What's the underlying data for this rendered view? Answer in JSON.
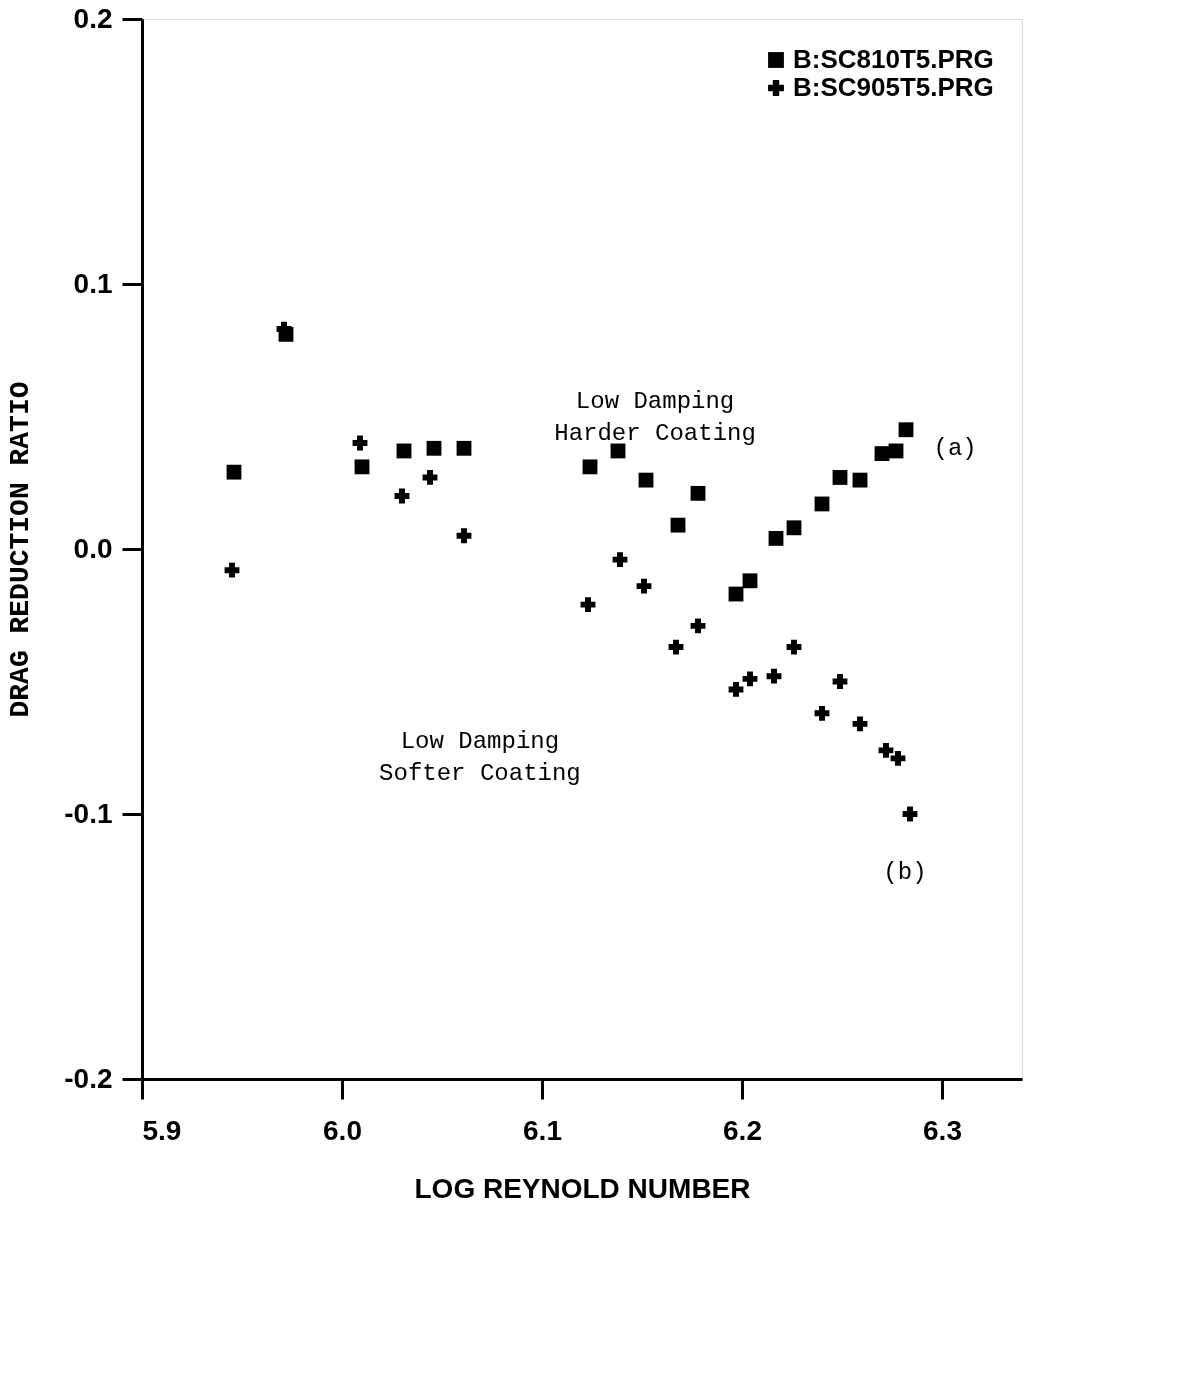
{
  "chart_data": {
    "type": "scatter",
    "xlabel": "LOG REYNOLD NUMBER",
    "ylabel": "DRAG REDUCTION RATIO",
    "xlim": [
      5.9,
      6.34
    ],
    "xticks": [
      {
        "value": 5.9,
        "label": "5.9"
      },
      {
        "value": 6.0,
        "label": "6.0"
      },
      {
        "value": 6.1,
        "label": "6.1"
      },
      {
        "value": 6.2,
        "label": "6.2"
      },
      {
        "value": 6.3,
        "label": "6.3"
      }
    ],
    "ylim": [
      -0.2,
      0.2
    ],
    "yticks": [
      {
        "value": -0.2,
        "label": "-0.2"
      },
      {
        "value": -0.1,
        "label": "-0.1"
      },
      {
        "value": 0,
        "label": "0.0"
      },
      {
        "value": 0.1,
        "label": "0.1"
      },
      {
        "value": 0.2,
        "label": "0.2"
      }
    ],
    "grid": false,
    "legend": "top right",
    "series": [
      {
        "name": "B:SC810T5.PRG",
        "color": "#000000",
        "marker": "square",
        "x": [
          5.946,
          5.972,
          6.01,
          6.031,
          6.046,
          6.061,
          6.124,
          6.138,
          6.152,
          6.168,
          6.178,
          6.197,
          6.204,
          6.217,
          6.226,
          6.24,
          6.249,
          6.259,
          6.27,
          6.277,
          6.282
        ],
        "values": [
          0.029,
          0.081,
          0.031,
          0.037,
          0.038,
          0.038,
          0.031,
          0.037,
          0.026,
          0.009,
          0.021,
          -0.017,
          -0.012,
          0.004,
          0.008,
          0.017,
          0.027,
          0.026,
          0.036,
          0.037,
          0.045
        ]
      },
      {
        "name": "B:SC905T5.PRG",
        "color": "#000000",
        "marker": "cross",
        "x": [
          5.945,
          5.971,
          6.009,
          6.03,
          6.044,
          6.061,
          6.123,
          6.139,
          6.151,
          6.167,
          6.178,
          6.197,
          6.204,
          6.216,
          6.226,
          6.24,
          6.249,
          6.259,
          6.272,
          6.278,
          6.284
        ],
        "values": [
          -0.008,
          0.083,
          0.04,
          0.02,
          0.027,
          0.005,
          -0.021,
          -0.004,
          -0.014,
          -0.037,
          -0.029,
          -0.053,
          -0.049,
          -0.048,
          -0.037,
          -0.062,
          -0.05,
          -0.066,
          -0.076,
          -0.079,
          -0.1
        ]
      }
    ],
    "annotations": [
      "Low Damping\nHarder Coating",
      "Low Damping\nSofter Coating",
      "(a)",
      "(b)"
    ]
  }
}
